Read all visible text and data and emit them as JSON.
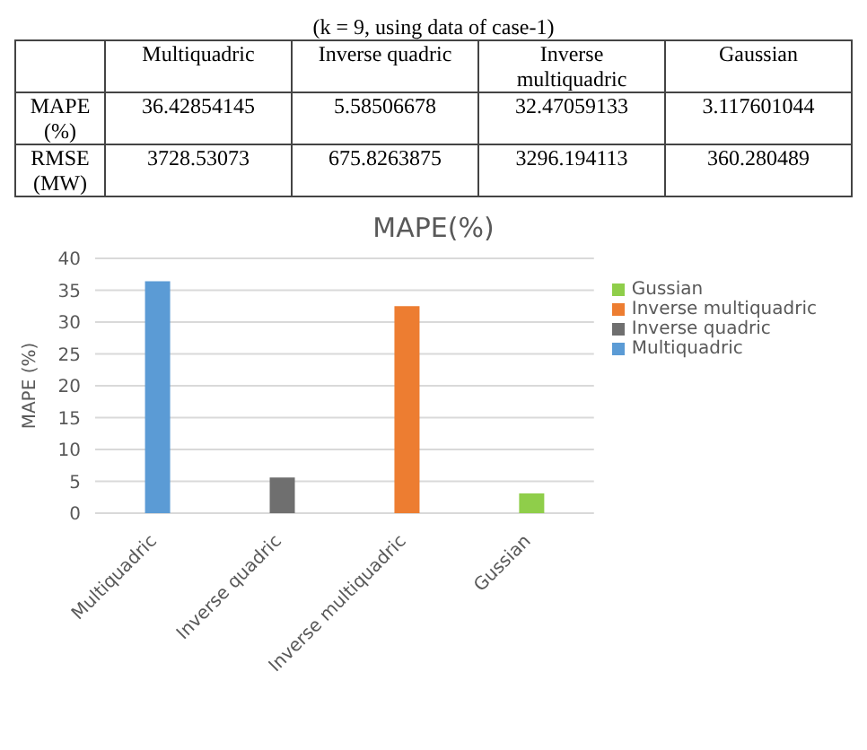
{
  "chart_data": [
    {
      "type": "other",
      "title": "(k = 9, using data of case-1)",
      "categories": [
        "Multiquadric",
        "Inverse quadric",
        "Inverse multiquadric",
        "Gaussian"
      ],
      "y_categories": [
        "MAPE (%)",
        "RMSE (MW)"
      ],
      "cell_labels": [
        [
          "36.42854145",
          "5.58506678",
          "32.47059133",
          "3.117601044"
        ],
        [
          "3728.53073",
          "675.8263875",
          "3296.194113",
          "360.280489"
        ]
      ]
    },
    {
      "type": "bar",
      "title": "MAPE(%)",
      "ylabel": "MAPE (%)",
      "categories": [
        "Multiquadric",
        "Inverse quadric",
        "Inverse multiquadric",
        "Gussian"
      ],
      "stacked": true,
      "series": [
        {
          "name": "Multiquadric",
          "color": "#5b9bd5",
          "values": [
            36.4,
            null,
            null,
            null
          ]
        },
        {
          "name": "Inverse quadric",
          "color": "#6f6f6f",
          "values": [
            null,
            5.6,
            null,
            null
          ]
        },
        {
          "name": "Inverse multiquadric",
          "color": "#ed7d31",
          "values": [
            null,
            null,
            32.5,
            null
          ]
        },
        {
          "name": "Gussian",
          "color": "#8fce4a",
          "values": [
            null,
            null,
            null,
            3.1
          ]
        }
      ],
      "ylim": [
        0,
        40
      ],
      "yticks": [
        0,
        5,
        10,
        15,
        20,
        25,
        30,
        35,
        40
      ],
      "grid": "y",
      "legend": "right"
    }
  ]
}
